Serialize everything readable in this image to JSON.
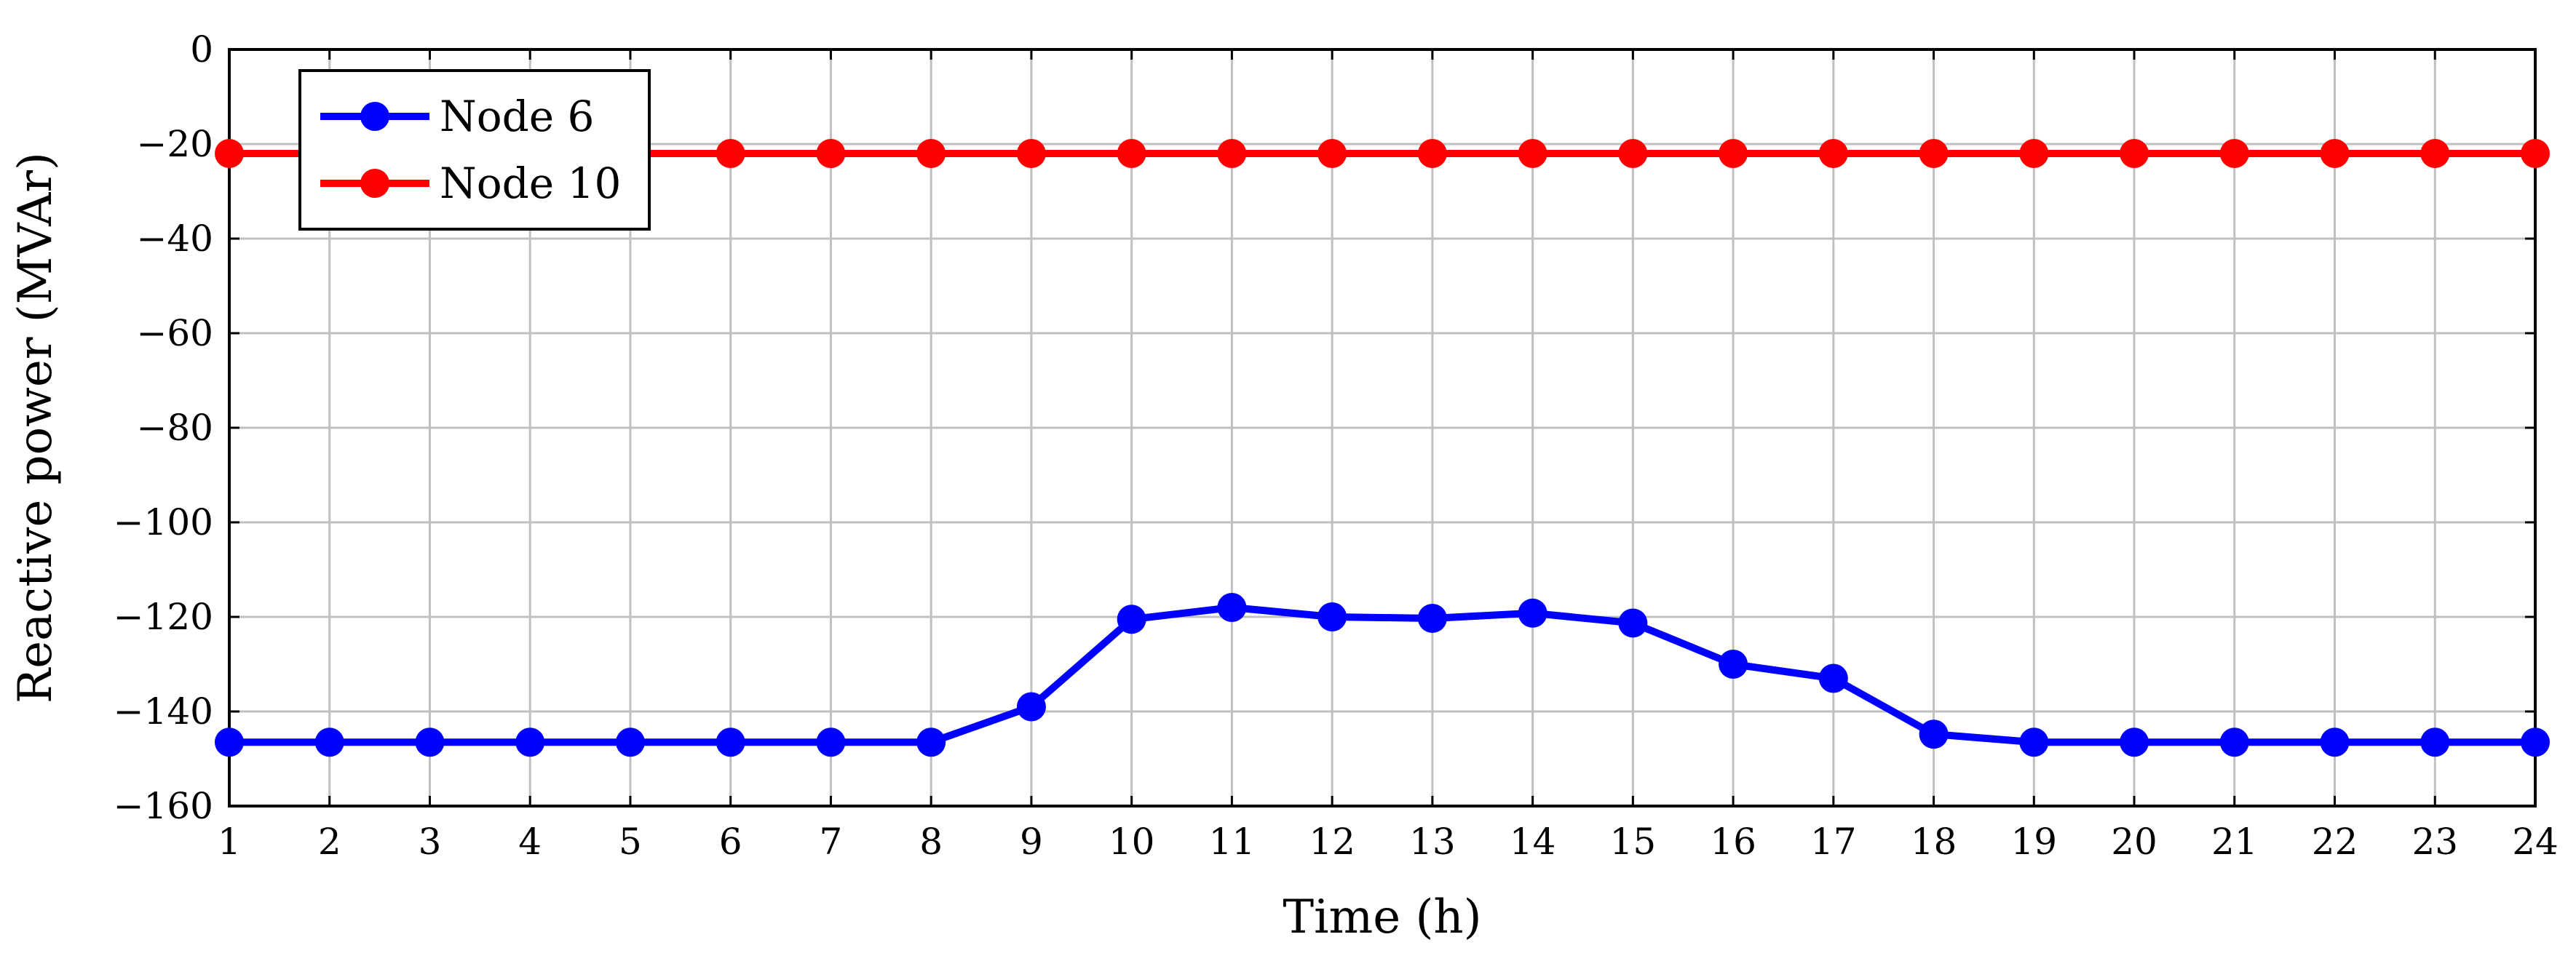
{
  "chart_data": {
    "type": "line",
    "title": "",
    "xlabel": "Time (h)",
    "ylabel": "Reactive power (MVAr)",
    "xlim": [
      1,
      24
    ],
    "ylim": [
      -160,
      0
    ],
    "x": [
      1,
      2,
      3,
      4,
      5,
      6,
      7,
      8,
      9,
      10,
      11,
      12,
      13,
      14,
      15,
      16,
      17,
      18,
      19,
      20,
      21,
      22,
      23,
      24
    ],
    "xticks": [
      "1",
      "2",
      "3",
      "4",
      "5",
      "6",
      "7",
      "8",
      "9",
      "10",
      "11",
      "12",
      "13",
      "14",
      "15",
      "16",
      "17",
      "18",
      "19",
      "20",
      "21",
      "22",
      "23",
      "24"
    ],
    "yticks": [
      0,
      -20,
      -40,
      -60,
      -80,
      -100,
      -120,
      -140,
      -160
    ],
    "ytick_labels": [
      "0",
      "−20",
      "−40",
      "−60",
      "−80",
      "−100",
      "−120",
      "−140",
      "−160"
    ],
    "grid": true,
    "legend_position": "top-left",
    "series": [
      {
        "name": "Node 6",
        "color": "#0000ff",
        "marker": "circle",
        "values": [
          -146.5,
          -146.5,
          -146.5,
          -146.5,
          -146.5,
          -146.5,
          -146.5,
          -146.5,
          -139,
          -120.5,
          -118,
          -120,
          -120.3,
          -119.2,
          -121.3,
          -130,
          -133,
          -144.8,
          -146.5,
          -146.5,
          -146.5,
          -146.5,
          -146.5,
          -146.5
        ]
      },
      {
        "name": "Node 10",
        "color": "#ff0000",
        "marker": "circle",
        "values": [
          -22,
          -22,
          -22,
          -22,
          -22,
          -22,
          -22,
          -22,
          -22,
          -22,
          -22,
          -22,
          -22,
          -22,
          -22,
          -22,
          -22,
          -22,
          -22,
          -22,
          -22,
          -22,
          -22,
          -22
        ]
      }
    ]
  }
}
